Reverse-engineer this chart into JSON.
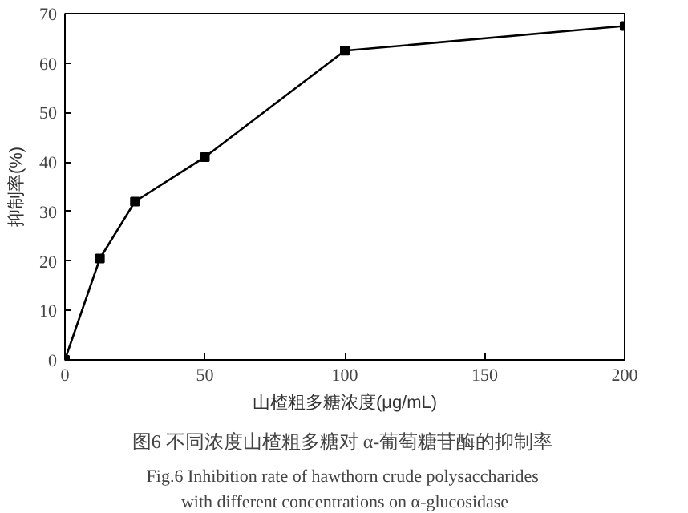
{
  "chart_data": {
    "type": "line",
    "xlabel": "山楂粗多糖浓度(μg/mL)",
    "ylabel": "抑制率(%)",
    "x": [
      0,
      12.5,
      25,
      50,
      100,
      200
    ],
    "series": [
      {
        "color": "#000000",
        "values": [
          0,
          20.5,
          32,
          41,
          62.5,
          67.5
        ]
      }
    ],
    "xlim": [
      0,
      200
    ],
    "ylim": [
      0,
      70
    ],
    "xticks": [
      0,
      50,
      100,
      150,
      200
    ],
    "yticks": [
      0,
      10,
      20,
      30,
      40,
      50,
      60,
      70
    ],
    "marker": "square",
    "line_style": "solid",
    "grid": false,
    "annotations": [
      "图6  不同浓度山楂粗多糖对 α-葡萄糖苷酶的抑制率",
      "Fig.6  Inhibition rate of hawthorn crude polysaccharides",
      "with different concentrations on α-glucosidase"
    ]
  }
}
